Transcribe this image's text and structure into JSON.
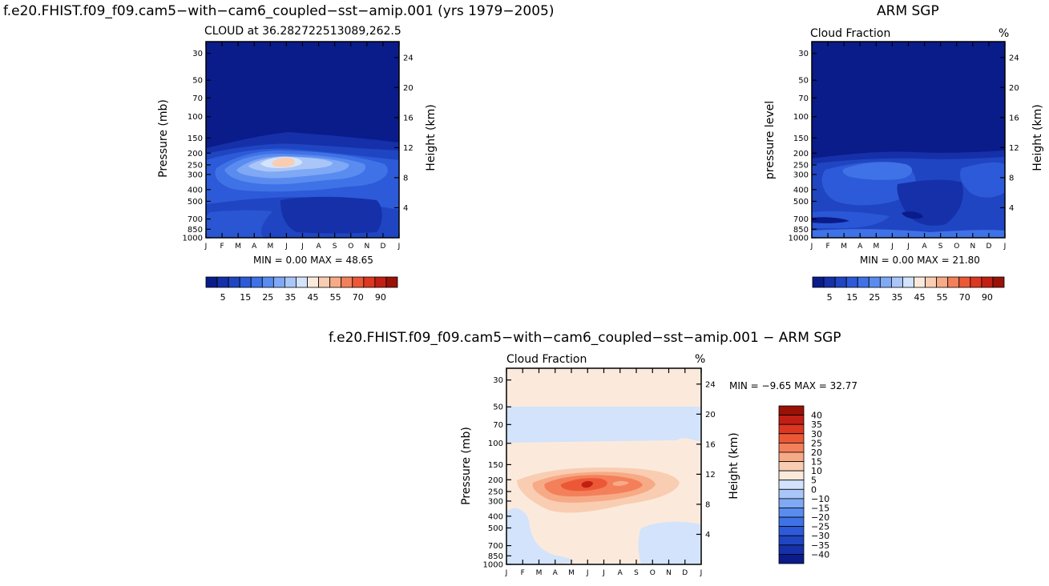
{
  "panel_a": {
    "title": "f.e20.FHIST.f09_f09.cam5−with−cam6_coupled−sst−amip.001 (yrs 1979−2005)",
    "left_title": "CLOUD at 36.282722513089,262.5",
    "right_title": "",
    "left_axis": "Pressure (mb)",
    "right_axis": "Height (km)",
    "stats": "MIN =    0.00  MAX =   48.65"
  },
  "panel_b": {
    "title": "ARM SGP",
    "left_title": "Cloud Fraction",
    "right_title": "%",
    "left_axis": "pressure level",
    "right_axis": "Height (km)",
    "stats": "MIN =    0.00  MAX =   21.80"
  },
  "panel_c": {
    "title": "f.e20.FHIST.f09_f09.cam5−with−cam6_coupled−sst−amip.001 − ARM SGP",
    "left_title": "Cloud Fraction",
    "right_title": "%",
    "left_axis": "Pressure (mb)",
    "right_axis": "Height (km)",
    "stats": "MIN =    −9.65  MAX =   32.77"
  },
  "colors": {
    "cloud_scale": [
      "#0a1b8a",
      "#1530a8",
      "#1f45c2",
      "#2d5ad8",
      "#3f72e6",
      "#5a8cf0",
      "#7fa8f5",
      "#aac6f8",
      "#d2e3fb",
      "#fbeadc",
      "#f9cdb2",
      "#f7aa86",
      "#f3805a",
      "#ec5836",
      "#dc3720",
      "#c21f14",
      "#9a1108"
    ],
    "diff_scale": [
      "#0a1b8a",
      "#1530a8",
      "#1f45c2",
      "#2d5ad8",
      "#3f72e6",
      "#5a8cf0",
      "#7fa8f5",
      "#aac6f8",
      "#d2e3fb",
      "#fbeadc",
      "#f9cdb2",
      "#f7aa86",
      "#f3805a",
      "#ec5836",
      "#dc3720",
      "#c21f14",
      "#9a1108"
    ]
  },
  "chart_data": [
    {
      "type": "heatmap",
      "title": "CLOUD at 36.282722513089,262.5",
      "xlabel": "",
      "ylabel": "Pressure (mb)",
      "y2label": "Height (km)",
      "x_ticks": [
        "J",
        "F",
        "M",
        "A",
        "M",
        "J",
        "J",
        "A",
        "S",
        "O",
        "N",
        "D",
        "J"
      ],
      "y_ticks": [
        "30",
        "50",
        "70",
        "100",
        "150",
        "200",
        "250",
        "300",
        "400",
        "500",
        "700",
        "850",
        "1000"
      ],
      "y_tick_values": [
        30,
        50,
        70,
        100,
        150,
        200,
        250,
        300,
        400,
        500,
        700,
        850,
        1000
      ],
      "y2_ticks": [
        "24",
        "20",
        "16",
        "12",
        "8",
        "4"
      ],
      "ylim": [
        1000,
        24
      ],
      "min": 0.0,
      "max": 48.65,
      "colorbar_labels": [
        "5",
        "15",
        "25",
        "35",
        "45",
        "55",
        "70",
        "90"
      ],
      "colorbar_levels": [
        2.5,
        5,
        10,
        15,
        20,
        25,
        30,
        35,
        40,
        45,
        50,
        55,
        60,
        70,
        80,
        90
      ],
      "peak": {
        "month": "Jun",
        "pressure": 250,
        "value": 48.65
      }
    },
    {
      "type": "heatmap",
      "title": "ARM SGP",
      "xlabel": "",
      "ylabel": "pressure level",
      "y2label": "Height (km)",
      "x_ticks": [
        "J",
        "F",
        "M",
        "A",
        "M",
        "J",
        "J",
        "A",
        "S",
        "O",
        "N",
        "D",
        "J"
      ],
      "y_ticks": [
        "30",
        "50",
        "70",
        "100",
        "150",
        "200",
        "250",
        "300",
        "400",
        "500",
        "700",
        "850",
        "1000"
      ],
      "y2_ticks": [
        "24",
        "20",
        "16",
        "12",
        "8",
        "4"
      ],
      "ylim": [
        1000,
        24
      ],
      "min": 0.0,
      "max": 21.8,
      "colorbar_labels": [
        "5",
        "15",
        "25",
        "35",
        "45",
        "55",
        "70",
        "90"
      ]
    },
    {
      "type": "heatmap",
      "title": "f.e20.FHIST.f09_f09.cam5−with−cam6_coupled−sst−amip.001 − ARM SGP",
      "xlabel": "",
      "ylabel": "Pressure (mb)",
      "y2label": "Height (km)",
      "x_ticks": [
        "J",
        "F",
        "M",
        "A",
        "M",
        "J",
        "J",
        "A",
        "S",
        "O",
        "N",
        "D",
        "J"
      ],
      "y_ticks": [
        "30",
        "50",
        "70",
        "100",
        "150",
        "200",
        "250",
        "300",
        "400",
        "500",
        "700",
        "850",
        "1000"
      ],
      "y2_ticks": [
        "24",
        "20",
        "16",
        "12",
        "8",
        "4"
      ],
      "ylim": [
        1000,
        24
      ],
      "min": -9.65,
      "max": 32.77,
      "colorbar_labels": [
        "40",
        "35",
        "30",
        "25",
        "20",
        "15",
        "10",
        "5",
        "0",
        "−10",
        "−15",
        "−20",
        "−25",
        "−30",
        "−35",
        "−40"
      ],
      "colorbar_levels": [
        -40,
        -35,
        -30,
        -25,
        -20,
        -15,
        -10,
        -5,
        0,
        5,
        10,
        15,
        20,
        25,
        30,
        35,
        40
      ]
    }
  ]
}
